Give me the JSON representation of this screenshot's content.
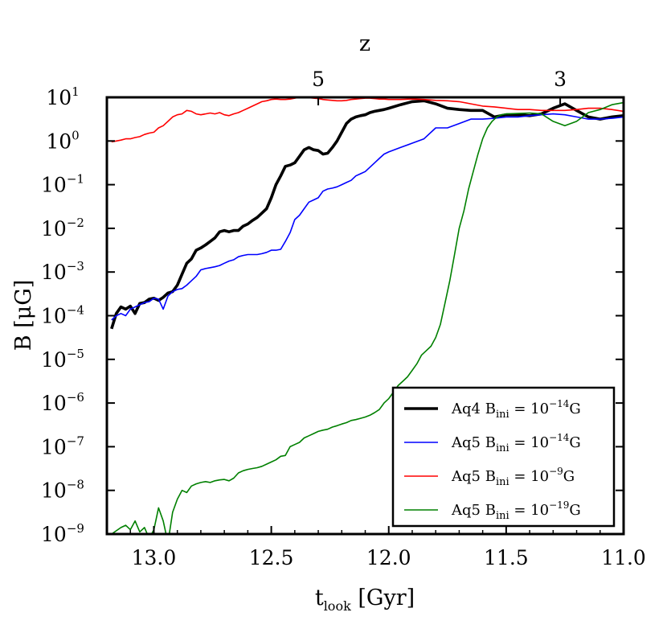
{
  "chart_data": {
    "type": "line",
    "xlabel": {
      "main": "t",
      "sub": "look",
      "unit": " [Gyr]"
    },
    "ylabel": "B [μG]",
    "top_xlabel": "z",
    "xlim": [
      13.2,
      11.0
    ],
    "ylim_log10": [
      -9,
      1
    ],
    "x_ticks": [
      {
        "value": 13.0,
        "label": "13.0"
      },
      {
        "value": 12.5,
        "label": "12.5"
      },
      {
        "value": 12.0,
        "label": "12.0"
      },
      {
        "value": 11.5,
        "label": "11.5"
      },
      {
        "value": 11.0,
        "label": "11.0"
      }
    ],
    "top_ticks": [
      {
        "t": 12.3,
        "label": "5"
      },
      {
        "t": 11.27,
        "label": "3"
      }
    ],
    "y_ticks": [
      {
        "exp": 1,
        "base": "10",
        "label": "1"
      },
      {
        "exp": 0,
        "base": "10",
        "label": "0"
      },
      {
        "exp": -1,
        "base": "10",
        "label": "−1"
      },
      {
        "exp": -2,
        "base": "10",
        "label": "−2"
      },
      {
        "exp": -3,
        "base": "10",
        "label": "−3"
      },
      {
        "exp": -4,
        "base": "10",
        "label": "−4"
      },
      {
        "exp": -5,
        "base": "10",
        "label": "−5"
      },
      {
        "exp": -6,
        "base": "10",
        "label": "−6"
      },
      {
        "exp": -7,
        "base": "10",
        "label": "−7"
      },
      {
        "exp": -8,
        "base": "10",
        "label": "−8"
      },
      {
        "exp": -9,
        "base": "10",
        "label": "−9"
      }
    ],
    "legend_position": "lower-right",
    "series": [
      {
        "name": "Aq4 Bini=1e-14G",
        "legend": {
          "prefix": "Aq4 B",
          "sub": "ini",
          "mid": " = 10",
          "sup": "−14",
          "suffix": "G"
        },
        "color": "#000000",
        "width": "thick",
        "x": [
          13.18,
          13.16,
          13.14,
          13.12,
          13.1,
          13.08,
          13.06,
          13.04,
          13.02,
          13.0,
          12.98,
          12.96,
          12.94,
          12.92,
          12.9,
          12.88,
          12.86,
          12.84,
          12.82,
          12.8,
          12.78,
          12.76,
          12.74,
          12.72,
          12.7,
          12.68,
          12.66,
          12.64,
          12.62,
          12.6,
          12.58,
          12.56,
          12.54,
          12.52,
          12.5,
          12.48,
          12.46,
          12.44,
          12.42,
          12.4,
          12.38,
          12.36,
          12.34,
          12.32,
          12.3,
          12.28,
          12.26,
          12.24,
          12.22,
          12.2,
          12.18,
          12.16,
          12.14,
          12.12,
          12.1,
          12.08,
          12.06,
          12.04,
          12.02,
          12.0,
          11.95,
          11.9,
          11.85,
          11.8,
          11.75,
          11.7,
          11.65,
          11.6,
          11.55,
          11.5,
          11.45,
          11.4,
          11.35,
          11.3,
          11.25,
          11.2,
          11.15,
          11.1,
          11.05,
          11.0
        ],
        "y_log10": [
          -4.3,
          -3.95,
          -3.8,
          -3.85,
          -3.78,
          -3.95,
          -3.72,
          -3.7,
          -3.62,
          -3.6,
          -3.65,
          -3.58,
          -3.48,
          -3.45,
          -3.3,
          -3.05,
          -2.8,
          -2.7,
          -2.5,
          -2.45,
          -2.38,
          -2.3,
          -2.22,
          -2.08,
          -2.05,
          -2.08,
          -2.05,
          -2.05,
          -1.95,
          -1.9,
          -1.82,
          -1.75,
          -1.65,
          -1.55,
          -1.3,
          -1.0,
          -0.8,
          -0.58,
          -0.55,
          -0.5,
          -0.35,
          -0.2,
          -0.15,
          -0.2,
          -0.22,
          -0.3,
          -0.28,
          -0.15,
          0.0,
          0.2,
          0.4,
          0.5,
          0.55,
          0.58,
          0.6,
          0.65,
          0.68,
          0.7,
          0.72,
          0.75,
          0.83,
          0.9,
          0.92,
          0.85,
          0.75,
          0.72,
          0.7,
          0.7,
          0.55,
          0.6,
          0.6,
          0.58,
          0.62,
          0.75,
          0.85,
          0.7,
          0.55,
          0.5,
          0.55,
          0.58
        ]
      },
      {
        "name": "Aq5 Bini=1e-14G",
        "legend": {
          "prefix": "Aq5 B",
          "sub": "ini",
          "mid": " = 10",
          "sup": "−14",
          "suffix": "G"
        },
        "color": "#0000ff",
        "width": "thin",
        "x": [
          13.18,
          13.16,
          13.14,
          13.12,
          13.1,
          13.08,
          13.06,
          13.04,
          13.02,
          13.0,
          12.98,
          12.96,
          12.94,
          12.92,
          12.9,
          12.88,
          12.86,
          12.84,
          12.82,
          12.8,
          12.78,
          12.76,
          12.74,
          12.72,
          12.7,
          12.68,
          12.66,
          12.64,
          12.62,
          12.6,
          12.58,
          12.56,
          12.54,
          12.52,
          12.5,
          12.48,
          12.46,
          12.44,
          12.42,
          12.4,
          12.38,
          12.36,
          12.34,
          12.32,
          12.3,
          12.28,
          12.26,
          12.24,
          12.22,
          12.2,
          12.18,
          12.16,
          12.14,
          12.12,
          12.1,
          12.08,
          12.06,
          12.04,
          12.02,
          12.0,
          11.95,
          11.9,
          11.85,
          11.8,
          11.75,
          11.7,
          11.65,
          11.6,
          11.55,
          11.5,
          11.45,
          11.4,
          11.35,
          11.3,
          11.25,
          11.2,
          11.15,
          11.1,
          11.05,
          11.0
        ],
        "y_log10": [
          -4.1,
          -4.0,
          -3.95,
          -4.0,
          -3.85,
          -3.8,
          -3.75,
          -3.7,
          -3.68,
          -3.6,
          -3.62,
          -3.85,
          -3.55,
          -3.45,
          -3.4,
          -3.38,
          -3.3,
          -3.2,
          -3.1,
          -2.95,
          -2.92,
          -2.9,
          -2.88,
          -2.85,
          -2.8,
          -2.75,
          -2.72,
          -2.65,
          -2.62,
          -2.6,
          -2.6,
          -2.6,
          -2.58,
          -2.55,
          -2.5,
          -2.5,
          -2.48,
          -2.3,
          -2.1,
          -1.8,
          -1.7,
          -1.55,
          -1.4,
          -1.35,
          -1.3,
          -1.15,
          -1.1,
          -1.08,
          -1.05,
          -1.0,
          -0.95,
          -0.9,
          -0.8,
          -0.75,
          -0.7,
          -0.6,
          -0.5,
          -0.4,
          -0.3,
          -0.25,
          -0.15,
          -0.05,
          0.05,
          0.3,
          0.3,
          0.4,
          0.5,
          0.5,
          0.52,
          0.55,
          0.55,
          0.58,
          0.6,
          0.62,
          0.6,
          0.55,
          0.5,
          0.5,
          0.52,
          0.55
        ]
      },
      {
        "name": "Aq5 Bini=1e-9G",
        "legend": {
          "prefix": "Aq5 B",
          "sub": "ini",
          "mid": " = 10",
          "sup": "−9",
          "suffix": "G"
        },
        "color": "#ff0000",
        "width": "thin",
        "x": [
          13.18,
          13.16,
          13.14,
          13.12,
          13.1,
          13.08,
          13.06,
          13.04,
          13.02,
          13.0,
          12.98,
          12.96,
          12.94,
          12.92,
          12.9,
          12.88,
          12.86,
          12.84,
          12.82,
          12.8,
          12.78,
          12.76,
          12.74,
          12.72,
          12.7,
          12.68,
          12.66,
          12.64,
          12.62,
          12.6,
          12.58,
          12.56,
          12.54,
          12.52,
          12.5,
          12.48,
          12.46,
          12.44,
          12.42,
          12.4,
          12.38,
          12.36,
          12.34,
          12.32,
          12.3,
          12.28,
          12.26,
          12.24,
          12.22,
          12.2,
          12.18,
          12.16,
          12.14,
          12.12,
          12.1,
          12.08,
          12.06,
          12.04,
          12.02,
          12.0,
          11.95,
          11.9,
          11.85,
          11.8,
          11.75,
          11.7,
          11.65,
          11.6,
          11.55,
          11.5,
          11.45,
          11.4,
          11.35,
          11.3,
          11.25,
          11.2,
          11.15,
          11.1,
          11.05,
          11.0
        ],
        "y_log10": [
          -0.02,
          0.0,
          0.02,
          0.05,
          0.05,
          0.08,
          0.1,
          0.15,
          0.18,
          0.2,
          0.3,
          0.35,
          0.45,
          0.55,
          0.6,
          0.62,
          0.7,
          0.68,
          0.62,
          0.6,
          0.62,
          0.64,
          0.62,
          0.65,
          0.6,
          0.58,
          0.62,
          0.65,
          0.7,
          0.75,
          0.8,
          0.85,
          0.9,
          0.92,
          0.95,
          0.96,
          0.95,
          0.95,
          0.96,
          0.98,
          1.0,
          1.0,
          0.99,
          0.98,
          0.97,
          0.95,
          0.94,
          0.93,
          0.92,
          0.92,
          0.93,
          0.95,
          0.96,
          0.97,
          0.98,
          0.98,
          0.97,
          0.96,
          0.96,
          0.95,
          0.95,
          0.96,
          0.95,
          0.93,
          0.92,
          0.9,
          0.85,
          0.8,
          0.78,
          0.75,
          0.72,
          0.72,
          0.7,
          0.7,
          0.7,
          0.72,
          0.75,
          0.75,
          0.72,
          0.68
        ]
      },
      {
        "name": "Aq5 Bini=1e-19G",
        "legend": {
          "prefix": "Aq5 B",
          "sub": "ini",
          "mid": " = 10",
          "sup": "−19",
          "suffix": "G"
        },
        "color": "#008000",
        "width": "thin",
        "x": [
          13.18,
          13.14,
          13.12,
          13.1,
          13.08,
          13.06,
          13.04,
          13.02,
          13.0,
          12.98,
          12.96,
          12.94,
          12.92,
          12.9,
          12.88,
          12.86,
          12.84,
          12.82,
          12.8,
          12.78,
          12.76,
          12.74,
          12.72,
          12.7,
          12.68,
          12.66,
          12.64,
          12.62,
          12.6,
          12.58,
          12.56,
          12.54,
          12.52,
          12.5,
          12.48,
          12.46,
          12.44,
          12.42,
          12.4,
          12.38,
          12.36,
          12.34,
          12.32,
          12.3,
          12.28,
          12.26,
          12.24,
          12.22,
          12.2,
          12.18,
          12.16,
          12.14,
          12.12,
          12.1,
          12.08,
          12.06,
          12.04,
          12.02,
          12.0,
          11.98,
          11.96,
          11.94,
          11.92,
          11.9,
          11.88,
          11.86,
          11.84,
          11.82,
          11.8,
          11.78,
          11.76,
          11.74,
          11.72,
          11.7,
          11.68,
          11.66,
          11.64,
          11.62,
          11.6,
          11.58,
          11.56,
          11.54,
          11.52,
          11.5,
          11.45,
          11.4,
          11.35,
          11.3,
          11.25,
          11.2,
          11.15,
          11.1,
          11.05,
          11.0
        ],
        "y_log10": [
          -9.0,
          -8.85,
          -8.8,
          -8.9,
          -8.7,
          -8.95,
          -8.85,
          -9.1,
          -8.9,
          -8.4,
          -8.7,
          -9.2,
          -8.5,
          -8.2,
          -8.0,
          -8.05,
          -7.9,
          -7.85,
          -7.82,
          -7.8,
          -7.82,
          -7.78,
          -7.76,
          -7.75,
          -7.78,
          -7.72,
          -7.6,
          -7.55,
          -7.52,
          -7.5,
          -7.48,
          -7.45,
          -7.4,
          -7.35,
          -7.3,
          -7.22,
          -7.2,
          -7.0,
          -6.95,
          -6.9,
          -6.8,
          -6.75,
          -6.7,
          -6.65,
          -6.62,
          -6.6,
          -6.55,
          -6.52,
          -6.48,
          -6.45,
          -6.4,
          -6.38,
          -6.35,
          -6.32,
          -6.28,
          -6.22,
          -6.15,
          -6.0,
          -5.9,
          -5.75,
          -5.6,
          -5.5,
          -5.4,
          -5.25,
          -5.1,
          -4.9,
          -4.8,
          -4.7,
          -4.5,
          -4.2,
          -3.7,
          -3.2,
          -2.6,
          -2.0,
          -1.6,
          -1.1,
          -0.7,
          -0.3,
          0.05,
          0.3,
          0.45,
          0.55,
          0.6,
          0.62,
          0.63,
          0.64,
          0.62,
          0.45,
          0.35,
          0.45,
          0.65,
          0.72,
          0.83,
          0.88
        ]
      }
    ]
  }
}
